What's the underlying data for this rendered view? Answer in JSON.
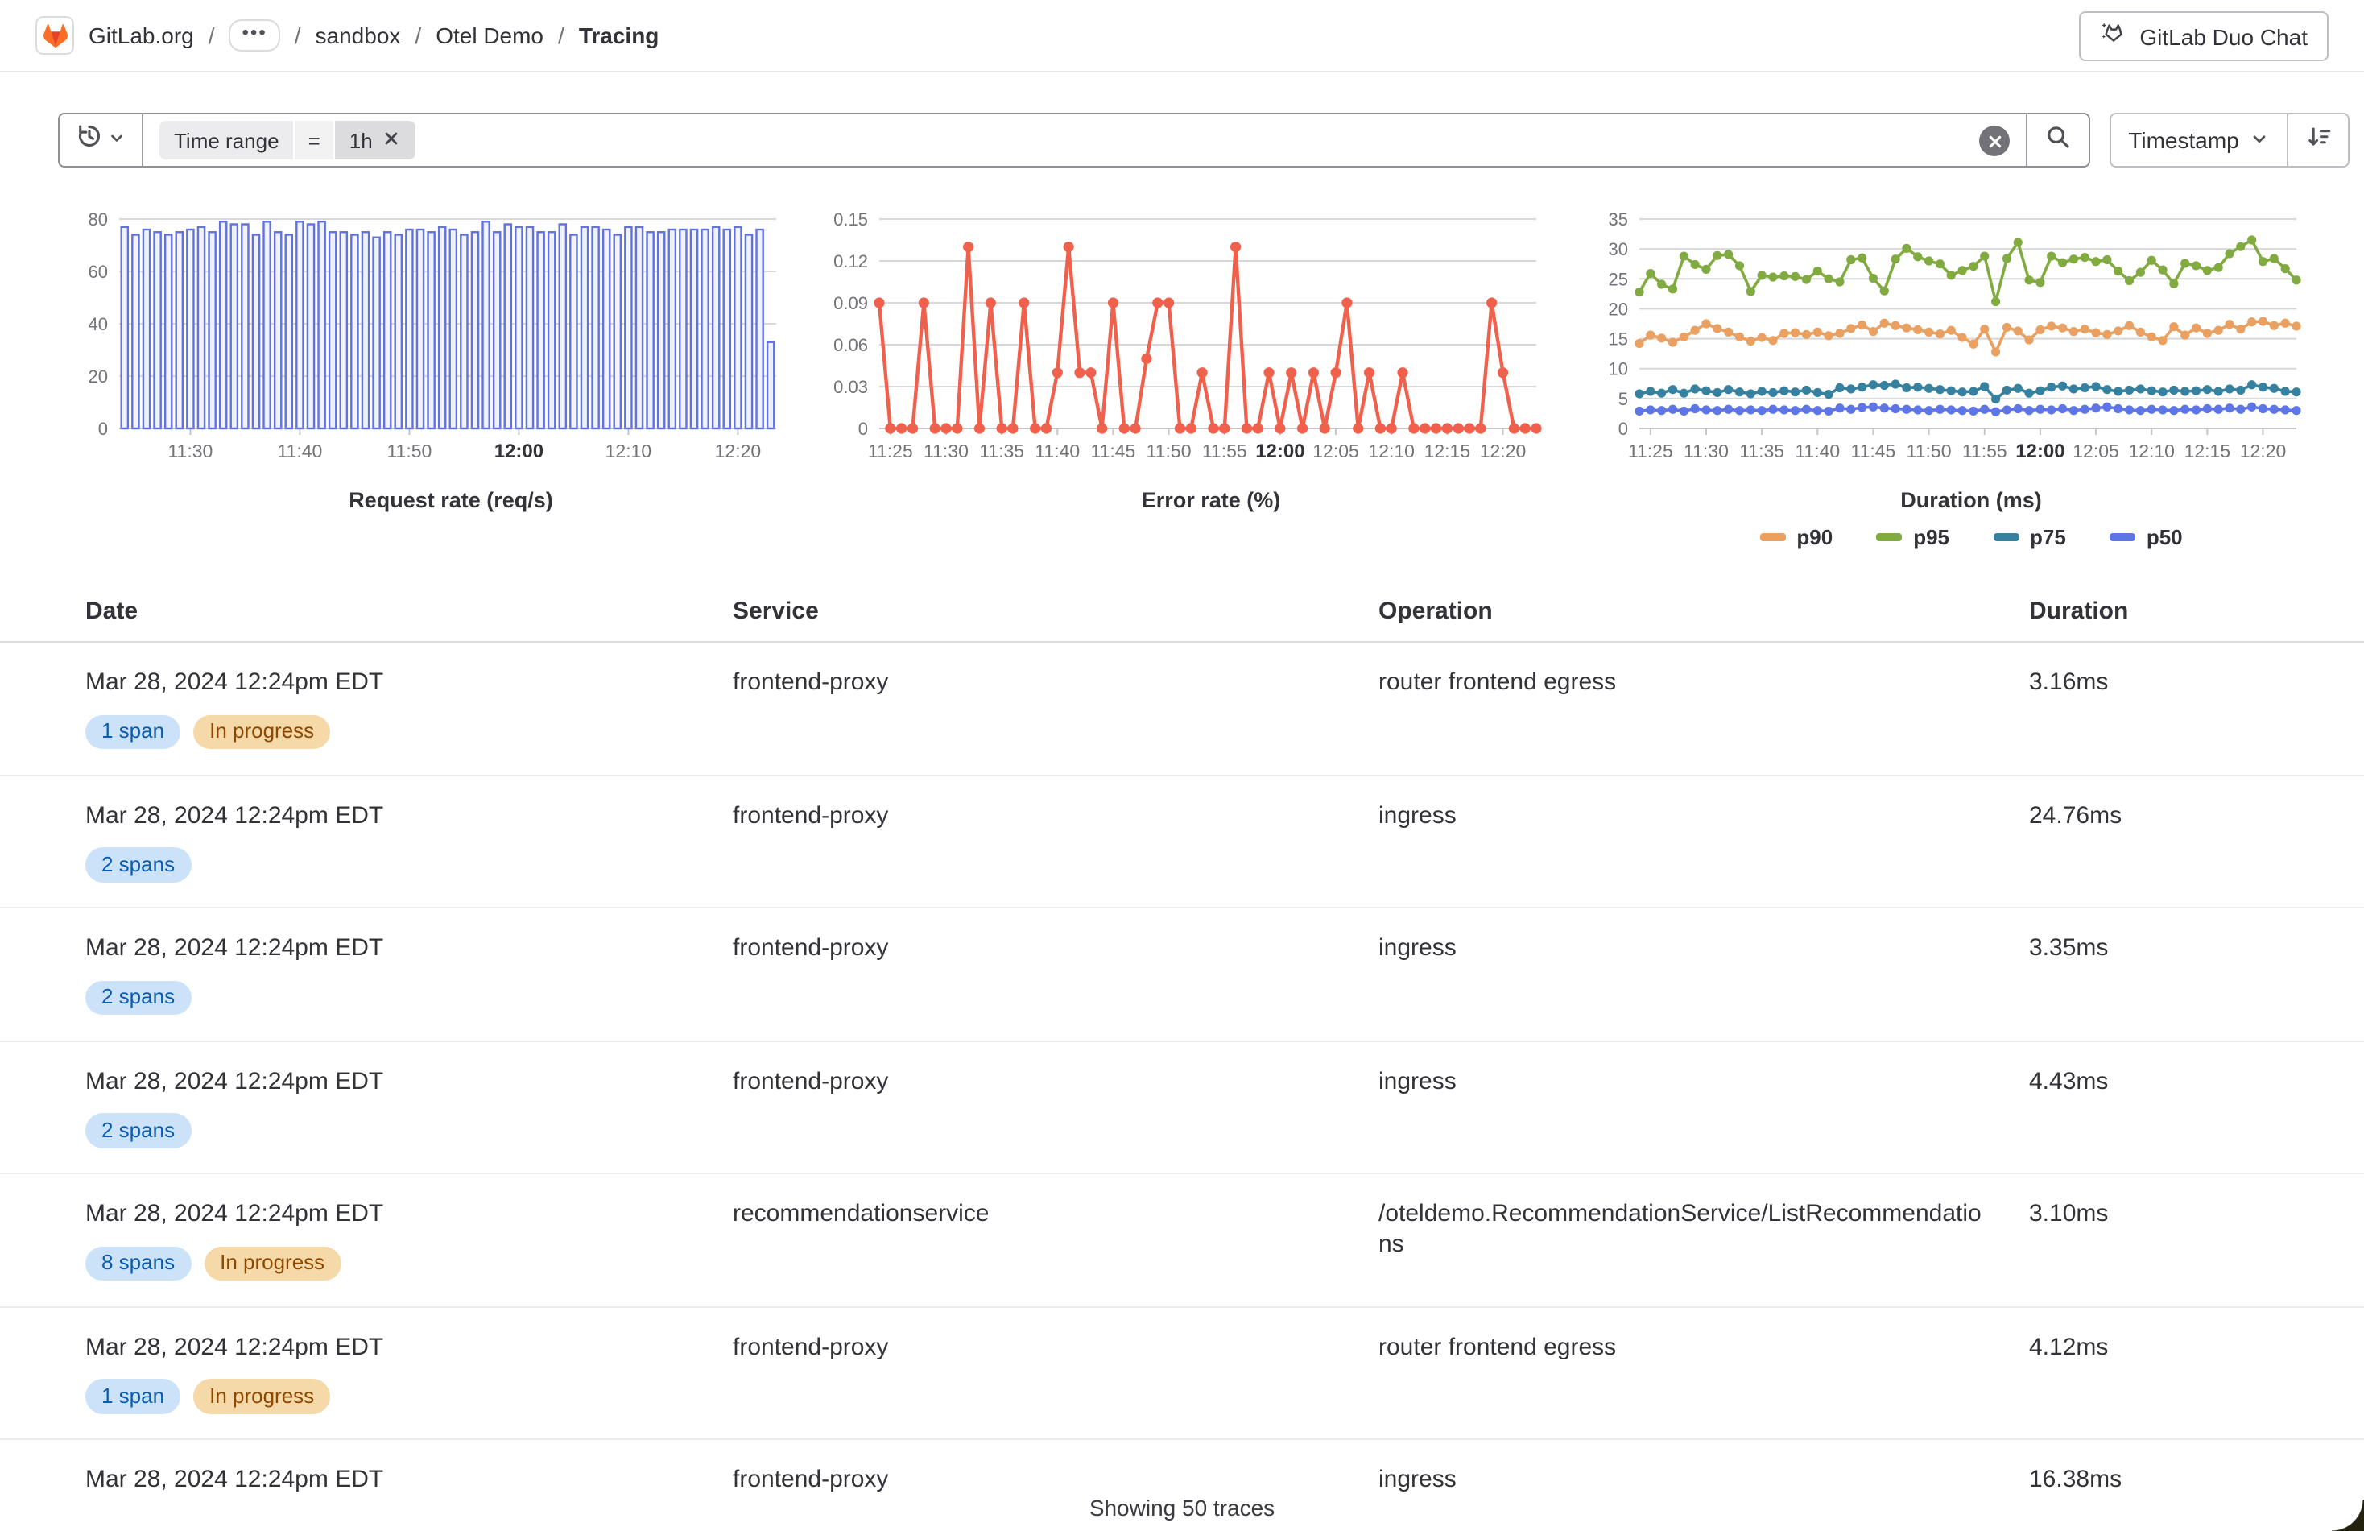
{
  "header": {
    "breadcrumb": {
      "separator": "/",
      "ellipsis": "•••",
      "items": [
        {
          "label": "GitLab.org",
          "type": "link",
          "icon": "gitlab-logo"
        },
        {
          "label": "•••",
          "type": "ellipsis"
        },
        {
          "label": "sandbox",
          "type": "link"
        },
        {
          "label": "Otel Demo",
          "type": "link"
        },
        {
          "label": "Tracing",
          "type": "current"
        }
      ]
    },
    "duo_chat_label": "GitLab Duo Chat"
  },
  "filter_bar": {
    "token": {
      "field": "Time range",
      "operator": "=",
      "value": "1h"
    },
    "sort": {
      "field_label": "Timestamp",
      "direction": "descending"
    }
  },
  "colors": {
    "brand_orange": "#fc6d26",
    "brand_red": "#e24329",
    "bar_blue": "#6171de",
    "error_red": "#f0614d",
    "badge_info_bg": "#cbe2f9",
    "badge_info_text": "#0b5cad",
    "badge_warning_bg": "#f5d9a8",
    "badge_warning_text": "#8f4700"
  },
  "chart_data": [
    {
      "type": "bar",
      "title": "Request rate (req/s)",
      "ylim": [
        0,
        80
      ],
      "yticks": [
        0,
        20,
        40,
        60,
        80
      ],
      "xticks": [
        "11:30",
        "11:40",
        "11:50",
        "12:00",
        "12:10",
        "12:20"
      ],
      "bold_xtick": "12:00",
      "color": "#6171de",
      "fill": "#f0f2fd",
      "x": [
        "11:24",
        "11:25",
        "11:26",
        "11:27",
        "11:28",
        "11:29",
        "11:30",
        "11:31",
        "11:32",
        "11:33",
        "11:34",
        "11:35",
        "11:36",
        "11:37",
        "11:38",
        "11:39",
        "11:40",
        "11:41",
        "11:42",
        "11:43",
        "11:44",
        "11:45",
        "11:46",
        "11:47",
        "11:48",
        "11:49",
        "11:50",
        "11:51",
        "11:52",
        "11:53",
        "11:54",
        "11:55",
        "11:56",
        "11:57",
        "11:58",
        "11:59",
        "12:00",
        "12:01",
        "12:02",
        "12:03",
        "12:04",
        "12:05",
        "12:06",
        "12:07",
        "12:08",
        "12:09",
        "12:10",
        "12:11",
        "12:12",
        "12:13",
        "12:14",
        "12:15",
        "12:16",
        "12:17",
        "12:18",
        "12:19",
        "12:20",
        "12:21",
        "12:22",
        "12:23"
      ],
      "values": [
        77,
        74,
        76,
        75,
        74,
        75,
        76,
        77,
        75,
        79,
        78,
        78,
        74,
        79,
        75,
        74,
        79,
        78,
        79,
        75,
        75,
        74,
        75,
        73,
        75,
        74,
        76,
        76,
        75,
        77,
        76,
        74,
        75,
        79,
        75,
        78,
        77,
        77,
        75,
        75,
        78,
        74,
        77,
        77,
        76,
        74,
        77,
        77,
        75,
        75,
        76,
        76,
        76,
        76,
        77,
        76,
        77,
        74,
        76,
        33
      ]
    },
    {
      "type": "line",
      "title": "Error rate (%)",
      "ylim": [
        0,
        0.15
      ],
      "yticks": [
        0,
        0.03,
        0.06,
        0.09,
        0.12,
        0.15
      ],
      "ytick_labels": [
        "0",
        "0.03",
        "0.06",
        "0.09",
        "0.12",
        "0.15"
      ],
      "xticks": [
        "11:25",
        "11:30",
        "11:35",
        "11:40",
        "11:45",
        "11:50",
        "11:55",
        "12:00",
        "12:05",
        "12:10",
        "12:15",
        "12:20"
      ],
      "bold_xtick": "12:00",
      "x": [
        "11:24",
        "11:25",
        "11:26",
        "11:27",
        "11:28",
        "11:29",
        "11:30",
        "11:31",
        "11:32",
        "11:33",
        "11:34",
        "11:35",
        "11:36",
        "11:37",
        "11:38",
        "11:39",
        "11:40",
        "11:41",
        "11:42",
        "11:43",
        "11:44",
        "11:45",
        "11:46",
        "11:47",
        "11:48",
        "11:49",
        "11:50",
        "11:51",
        "11:52",
        "11:53",
        "11:54",
        "11:55",
        "11:56",
        "11:57",
        "11:58",
        "11:59",
        "12:00",
        "12:01",
        "12:02",
        "12:03",
        "12:04",
        "12:05",
        "12:06",
        "12:07",
        "12:08",
        "12:09",
        "12:10",
        "12:11",
        "12:12",
        "12:13",
        "12:14",
        "12:15",
        "12:16",
        "12:17",
        "12:18",
        "12:19",
        "12:20",
        "12:21",
        "12:22",
        "12:23"
      ],
      "series": [
        {
          "name": "error rate",
          "color": "#f0614d",
          "values": [
            0.09,
            0,
            0,
            0,
            0.09,
            0,
            0,
            0,
            0.13,
            0,
            0.09,
            0,
            0,
            0.09,
            0,
            0,
            0.04,
            0.13,
            0.04,
            0.04,
            0,
            0.09,
            0,
            0,
            0.05,
            0.09,
            0.09,
            0,
            0,
            0.04,
            0,
            0,
            0.13,
            0,
            0,
            0.04,
            0,
            0.04,
            0,
            0.04,
            0,
            0.04,
            0.09,
            0,
            0.04,
            0,
            0,
            0.04,
            0,
            0,
            0,
            0,
            0,
            0,
            0,
            0.09,
            0.04,
            0,
            0,
            0
          ]
        }
      ]
    },
    {
      "type": "line",
      "title": "Duration (ms)",
      "ylim": [
        0,
        35
      ],
      "yticks": [
        0,
        5,
        10,
        15,
        20,
        25,
        30,
        35
      ],
      "xticks": [
        "11:25",
        "11:30",
        "11:35",
        "11:40",
        "11:45",
        "11:50",
        "11:55",
        "12:00",
        "12:05",
        "12:10",
        "12:15",
        "12:20"
      ],
      "bold_xtick": "12:00",
      "legend_position": "bottom",
      "x": [
        "11:24",
        "11:25",
        "11:26",
        "11:27",
        "11:28",
        "11:29",
        "11:30",
        "11:31",
        "11:32",
        "11:33",
        "11:34",
        "11:35",
        "11:36",
        "11:37",
        "11:38",
        "11:39",
        "11:40",
        "11:41",
        "11:42",
        "11:43",
        "11:44",
        "11:45",
        "11:46",
        "11:47",
        "11:48",
        "11:49",
        "11:50",
        "11:51",
        "11:52",
        "11:53",
        "11:54",
        "11:55",
        "11:56",
        "11:57",
        "11:58",
        "11:59",
        "12:00",
        "12:01",
        "12:02",
        "12:03",
        "12:04",
        "12:05",
        "12:06",
        "12:07",
        "12:08",
        "12:09",
        "12:10",
        "12:11",
        "12:12",
        "12:13",
        "12:14",
        "12:15",
        "12:16",
        "12:17",
        "12:18",
        "12:19",
        "12:20",
        "12:21",
        "12:22",
        "12:23"
      ],
      "series": [
        {
          "name": "p90",
          "color": "#e9a061",
          "values": [
            14.2,
            15.6,
            15.1,
            14.4,
            15.3,
            16.4,
            17.5,
            16.7,
            16.1,
            15.3,
            14.6,
            15.2,
            14.7,
            15.9,
            16.0,
            15.7,
            16.1,
            15.5,
            15.9,
            16.7,
            17.3,
            16.2,
            17.6,
            17.2,
            16.8,
            16.5,
            16.1,
            15.8,
            16.4,
            15.2,
            14.1,
            16.6,
            12.8,
            16.9,
            16.3,
            14.8,
            16.5,
            17.1,
            16.8,
            16.2,
            16.6,
            16.0,
            15.7,
            16.3,
            17.2,
            16.1,
            15.3,
            14.7,
            17.0,
            15.6,
            16.8,
            15.9,
            16.4,
            17.4,
            16.6,
            17.8,
            17.9,
            17.2,
            17.6,
            17.1
          ]
        },
        {
          "name": "p95",
          "color": "#81ab41",
          "values": [
            22.8,
            25.9,
            24.1,
            23.3,
            28.8,
            27.4,
            26.6,
            28.9,
            29.1,
            27.2,
            22.9,
            25.6,
            25.3,
            25.5,
            25.4,
            24.9,
            26.3,
            25.0,
            24.5,
            28.2,
            28.5,
            25.1,
            23.0,
            28.3,
            30.1,
            28.7,
            28.0,
            27.5,
            25.6,
            26.4,
            27.1,
            28.8,
            21.2,
            28.4,
            31.1,
            24.8,
            24.4,
            28.8,
            27.7,
            28.3,
            28.6,
            27.9,
            28.2,
            26.3,
            24.7,
            26.1,
            28.1,
            26.5,
            24.2,
            27.6,
            27.2,
            26.4,
            26.9,
            29.2,
            30.4,
            31.5,
            27.9,
            28.4,
            26.7,
            24.8
          ]
        },
        {
          "name": "p75",
          "color": "#35819f",
          "values": [
            5.8,
            6.2,
            5.9,
            6.5,
            5.9,
            6.6,
            6.3,
            6.0,
            6.5,
            6.1,
            5.8,
            6.2,
            6.0,
            6.3,
            6.1,
            6.4,
            6.0,
            5.7,
            6.8,
            6.6,
            6.9,
            7.3,
            7.2,
            7.4,
            6.8,
            6.9,
            6.7,
            6.5,
            6.3,
            6.1,
            6.2,
            7.0,
            4.9,
            6.4,
            6.7,
            5.9,
            6.3,
            6.9,
            7.1,
            6.6,
            6.8,
            7.0,
            6.5,
            6.2,
            6.4,
            6.6,
            6.3,
            6.1,
            6.4,
            6.2,
            6.3,
            6.5,
            6.2,
            6.6,
            6.4,
            7.3,
            6.9,
            6.7,
            6.2,
            6.1
          ]
        },
        {
          "name": "p50",
          "color": "#5e75e6",
          "values": [
            2.9,
            3.1,
            3.0,
            3.2,
            2.9,
            3.3,
            3.1,
            3.0,
            3.2,
            3.0,
            3.1,
            3.0,
            3.2,
            3.1,
            3.0,
            3.2,
            3.0,
            2.9,
            3.4,
            3.2,
            3.5,
            3.6,
            3.4,
            3.3,
            3.2,
            3.1,
            3.0,
            3.2,
            3.1,
            3.0,
            2.9,
            3.2,
            2.8,
            3.1,
            3.3,
            3.0,
            3.2,
            3.1,
            3.3,
            3.0,
            3.2,
            3.4,
            3.6,
            3.3,
            3.1,
            3.0,
            3.2,
            3.1,
            3.0,
            3.2,
            3.1,
            3.3,
            3.2,
            3.4,
            3.2,
            3.6,
            3.3,
            3.2,
            3.1,
            3.0
          ]
        }
      ]
    }
  ],
  "table": {
    "columns": [
      "Date",
      "Service",
      "Operation",
      "Duration"
    ],
    "footer": "Showing 50 traces",
    "rows": [
      {
        "date": "Mar 28, 2024 12:24pm EDT",
        "badges": [
          {
            "label": "1 span",
            "type": "info"
          },
          {
            "label": "In progress",
            "type": "warning"
          }
        ],
        "service": "frontend-proxy",
        "operation": "router frontend egress",
        "duration": "3.16ms"
      },
      {
        "date": "Mar 28, 2024 12:24pm EDT",
        "badges": [
          {
            "label": "2 spans",
            "type": "info"
          }
        ],
        "service": "frontend-proxy",
        "operation": "ingress",
        "duration": "24.76ms"
      },
      {
        "date": "Mar 28, 2024 12:24pm EDT",
        "badges": [
          {
            "label": "2 spans",
            "type": "info"
          }
        ],
        "service": "frontend-proxy",
        "operation": "ingress",
        "duration": "3.35ms"
      },
      {
        "date": "Mar 28, 2024 12:24pm EDT",
        "badges": [
          {
            "label": "2 spans",
            "type": "info"
          }
        ],
        "service": "frontend-proxy",
        "operation": "ingress",
        "duration": "4.43ms"
      },
      {
        "date": "Mar 28, 2024 12:24pm EDT",
        "badges": [
          {
            "label": "8 spans",
            "type": "info"
          },
          {
            "label": "In progress",
            "type": "warning"
          }
        ],
        "service": "recommendationservice",
        "operation": "/oteldemo.RecommendationService/ListRecommendations",
        "duration": "3.10ms"
      },
      {
        "date": "Mar 28, 2024 12:24pm EDT",
        "badges": [
          {
            "label": "1 span",
            "type": "info"
          },
          {
            "label": "In progress",
            "type": "warning"
          }
        ],
        "service": "frontend-proxy",
        "operation": "router frontend egress",
        "duration": "4.12ms"
      },
      {
        "date": "Mar 28, 2024 12:24pm EDT",
        "badges": [],
        "service": "frontend-proxy",
        "operation": "ingress",
        "duration": "16.38ms"
      }
    ]
  }
}
